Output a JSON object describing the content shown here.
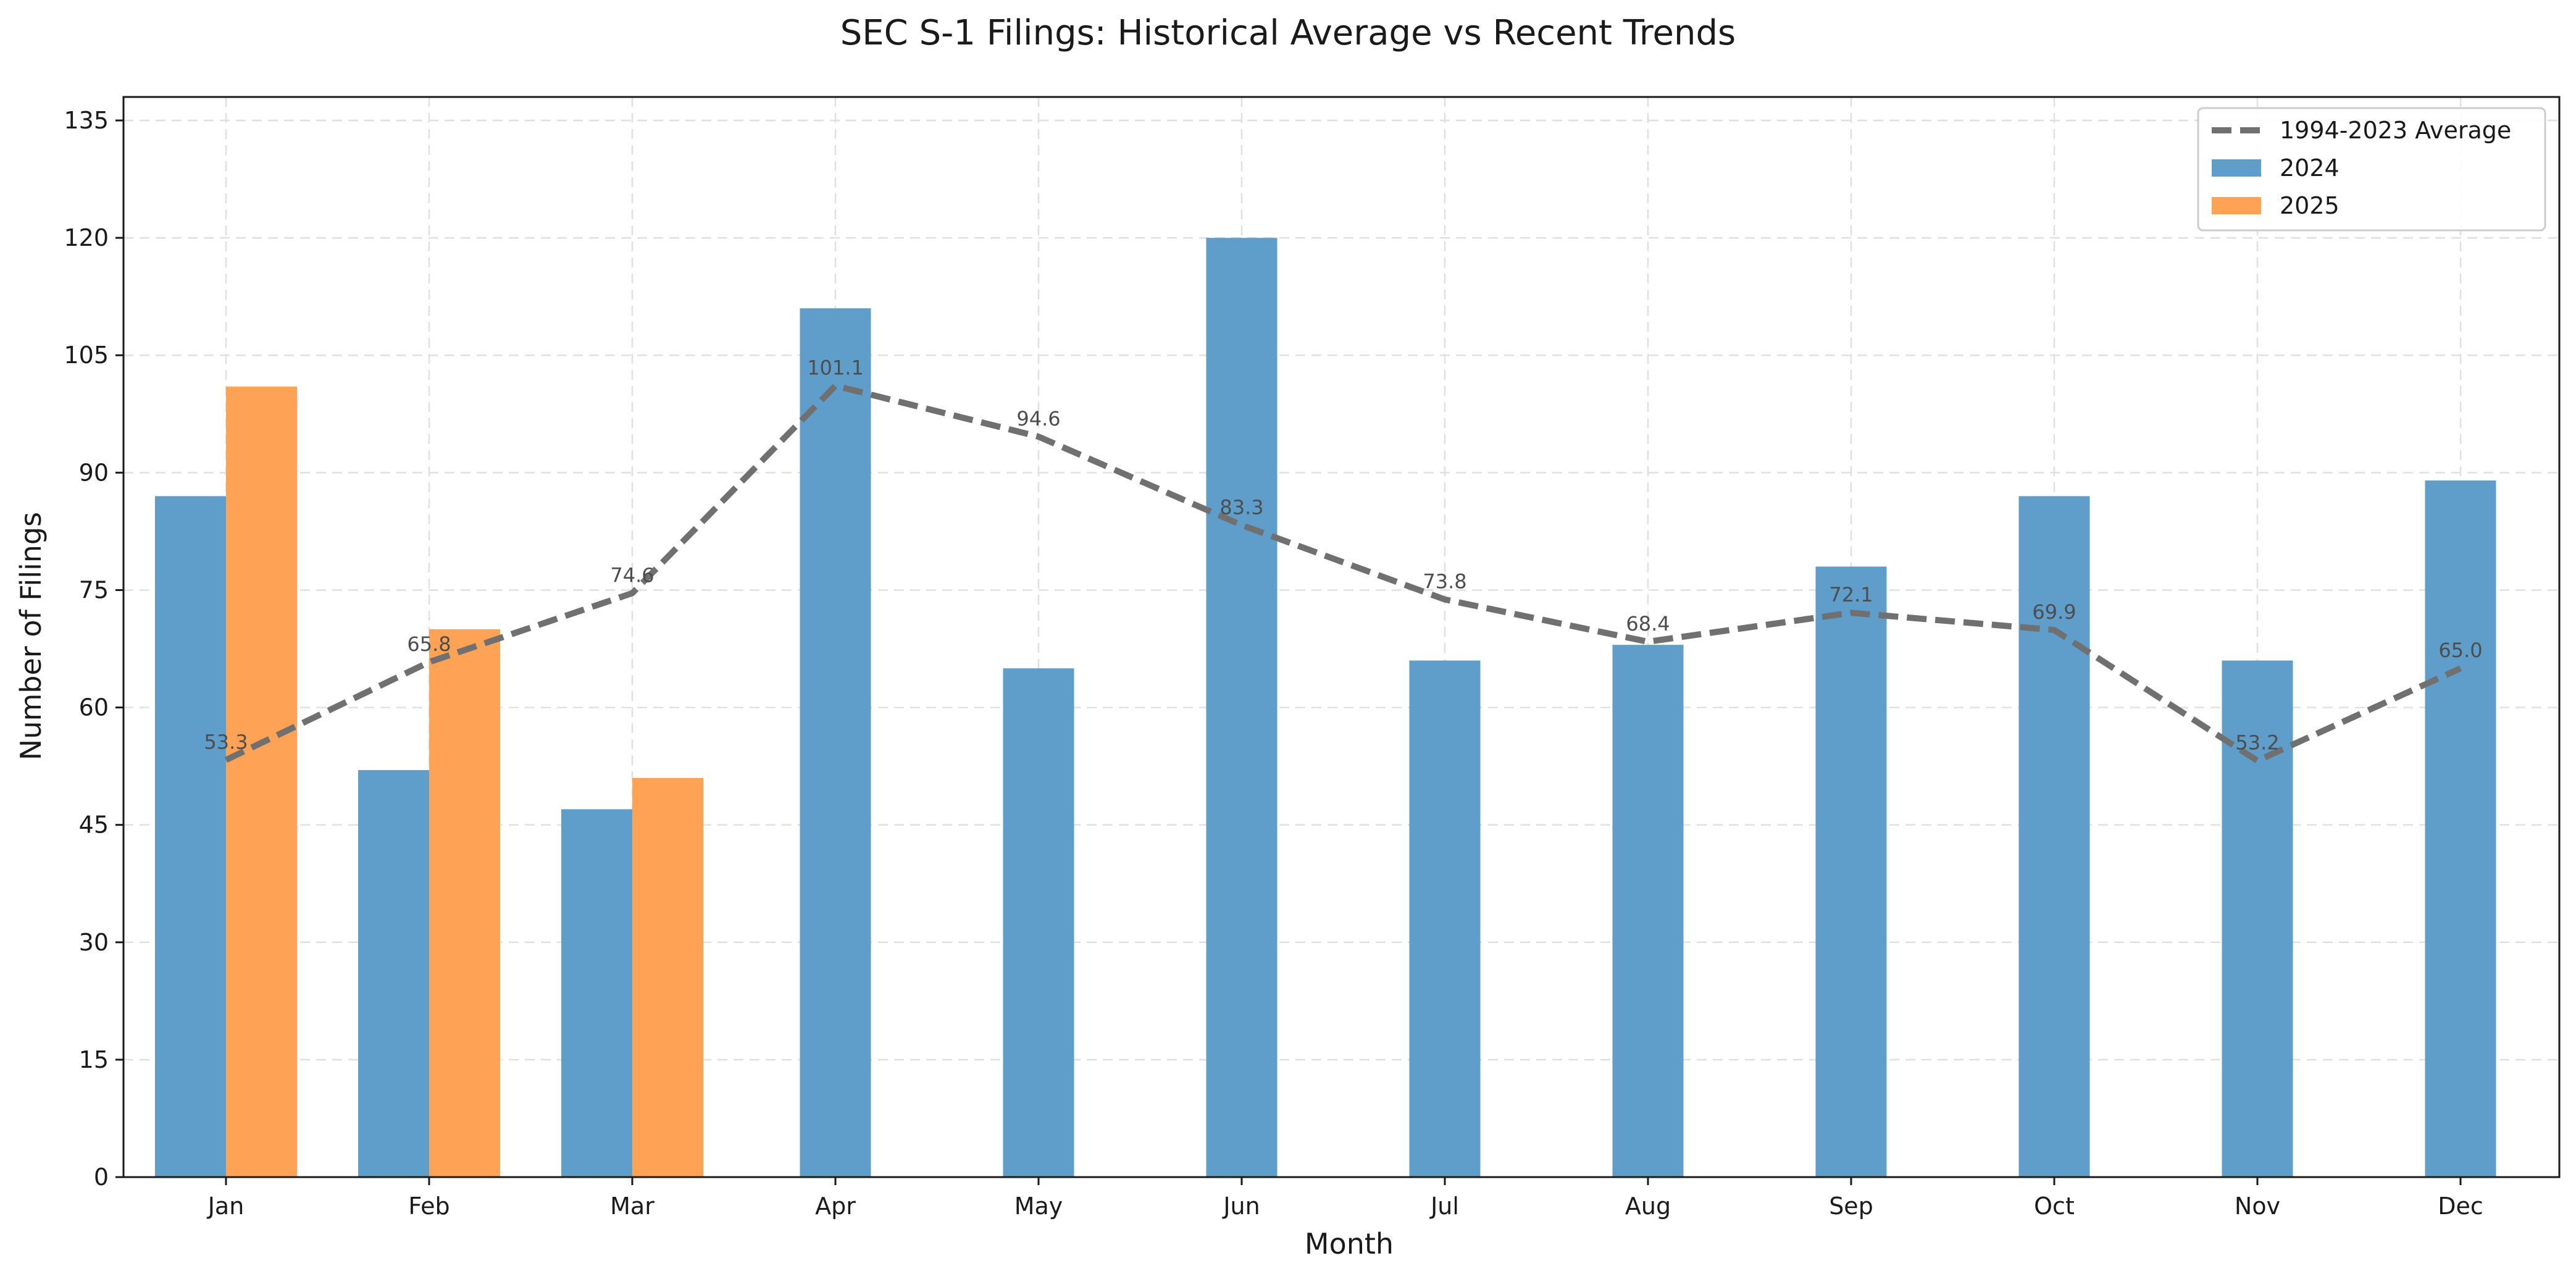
{
  "chart_data": {
    "type": "bar",
    "title": "SEC S-1 Filings: Historical Average vs Recent Trends",
    "xlabel": "Month",
    "ylabel": "Number of Filings",
    "categories": [
      "Jan",
      "Feb",
      "Mar",
      "Apr",
      "May",
      "Jun",
      "Jul",
      "Aug",
      "Sep",
      "Oct",
      "Nov",
      "Dec"
    ],
    "series": [
      {
        "name": "2024",
        "type": "bar",
        "color": "#5f9ecb",
        "values": [
          87,
          52,
          47,
          111,
          65,
          120,
          66,
          68,
          78,
          87,
          66,
          89
        ]
      },
      {
        "name": "2025",
        "type": "bar",
        "color": "#fea356",
        "values": [
          101,
          70,
          51,
          null,
          null,
          null,
          null,
          null,
          null,
          null,
          null,
          null
        ]
      },
      {
        "name": "1994-2023 Average",
        "type": "line",
        "style": "dashed",
        "color": "#707070",
        "values": [
          53.3,
          65.8,
          74.6,
          101.1,
          94.6,
          83.3,
          73.8,
          68.4,
          72.1,
          69.9,
          53.2,
          65.0
        ]
      }
    ],
    "data_labels": [
      "53.3",
      "65.8",
      "74.6",
      "101.1",
      "94.6",
      "83.3",
      "73.8",
      "68.4",
      "72.1",
      "69.9",
      "53.2",
      "65.0"
    ],
    "yticks": [
      "0",
      "15",
      "30",
      "45",
      "60",
      "75",
      "90",
      "105",
      "120",
      "135"
    ],
    "ylim": [
      0,
      138
    ],
    "grid": true,
    "legend_position": "top-right",
    "legend_order": [
      "1994-2023 Average",
      "2024",
      "2025"
    ]
  }
}
